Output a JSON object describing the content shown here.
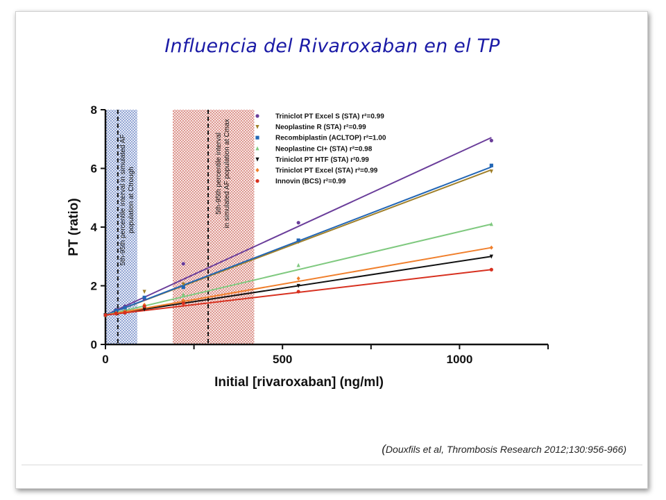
{
  "slide": {
    "title": "Influencia del Rivaroxaban en el TP",
    "citation_open": "(",
    "citation": "Douxfils et al, Thrombosis Research 2012;130:956-966)"
  },
  "chart_data": {
    "type": "scatter",
    "xlabel": "Initial [rivaroxaban] (ng/ml)",
    "ylabel": "PT (ratio)",
    "xlim": [
      0,
      1250
    ],
    "ylim": [
      0,
      8
    ],
    "xticks": [
      0,
      500,
      1000
    ],
    "xtick_labels": [
      "0",
      "500",
      "1000"
    ],
    "yticks": [
      0,
      2,
      4,
      6,
      8
    ],
    "ytick_labels": [
      "0",
      "2",
      "4",
      "6",
      "8"
    ],
    "grid": false,
    "legend_position": "top-right",
    "x": [
      0,
      30,
      55,
      110,
      220,
      545,
      1090
    ],
    "series": [
      {
        "name": "Triniclot PT Excel S (STA) r²=0.99",
        "color": "#6a3d9a",
        "marker": "circle",
        "values": [
          1.0,
          1.18,
          1.3,
          1.55,
          2.75,
          4.15,
          6.95
        ],
        "fit": [
          1.0,
          7.05
        ]
      },
      {
        "name": "Neoplastine R (STA) r²=0.99",
        "color": "#a0802a",
        "marker": "triangle-down",
        "values": [
          1.0,
          1.15,
          1.25,
          1.8,
          2.05,
          3.5,
          5.9
        ],
        "fit": [
          1.0,
          5.95
        ]
      },
      {
        "name": "Recombiplastin (ACLTOP) r²=1.00",
        "color": "#2266b5",
        "marker": "square",
        "values": [
          1.0,
          1.15,
          1.25,
          1.6,
          1.95,
          3.55,
          6.1
        ],
        "fit": [
          1.0,
          6.05
        ]
      },
      {
        "name": "Neoplastine CI+ (STA) r²=0.98",
        "color": "#7fc97f",
        "marker": "triangle-up",
        "values": [
          1.0,
          1.08,
          1.15,
          1.35,
          1.7,
          2.7,
          4.1
        ],
        "fit": [
          1.0,
          4.1
        ]
      },
      {
        "name": "Triniclot PT HTF (STA) r²0.99",
        "color": "#111111",
        "marker": "triangle-down",
        "values": [
          1.0,
          1.05,
          1.1,
          1.2,
          1.45,
          2.0,
          3.0
        ],
        "fit": [
          1.0,
          3.0
        ]
      },
      {
        "name": "Triniclot PT Excel (STA) r²=0.99",
        "color": "#f07f2c",
        "marker": "diamond",
        "values": [
          1.0,
          1.07,
          1.12,
          1.35,
          1.5,
          2.25,
          3.3
        ],
        "fit": [
          1.0,
          3.3
        ]
      },
      {
        "name": "Innovin (BCS) r²=0.99",
        "color": "#d7301f",
        "marker": "circle",
        "values": [
          1.0,
          1.05,
          1.08,
          1.3,
          1.4,
          1.8,
          2.55
        ],
        "fit": [
          1.0,
          2.55
        ]
      }
    ],
    "bands": [
      {
        "x0": 0,
        "x1": 90,
        "color": "#2b4fa8",
        "pattern": "dots",
        "label": "5th-95th percentile interval in simulated AF population at Ctrough",
        "line_x": 35
      },
      {
        "x0": 190,
        "x1": 420,
        "color": "#c0392b",
        "pattern": "dots",
        "label": "5th-95th percentile interval in simulated AF population at Cmax",
        "line_x": 290
      }
    ]
  }
}
